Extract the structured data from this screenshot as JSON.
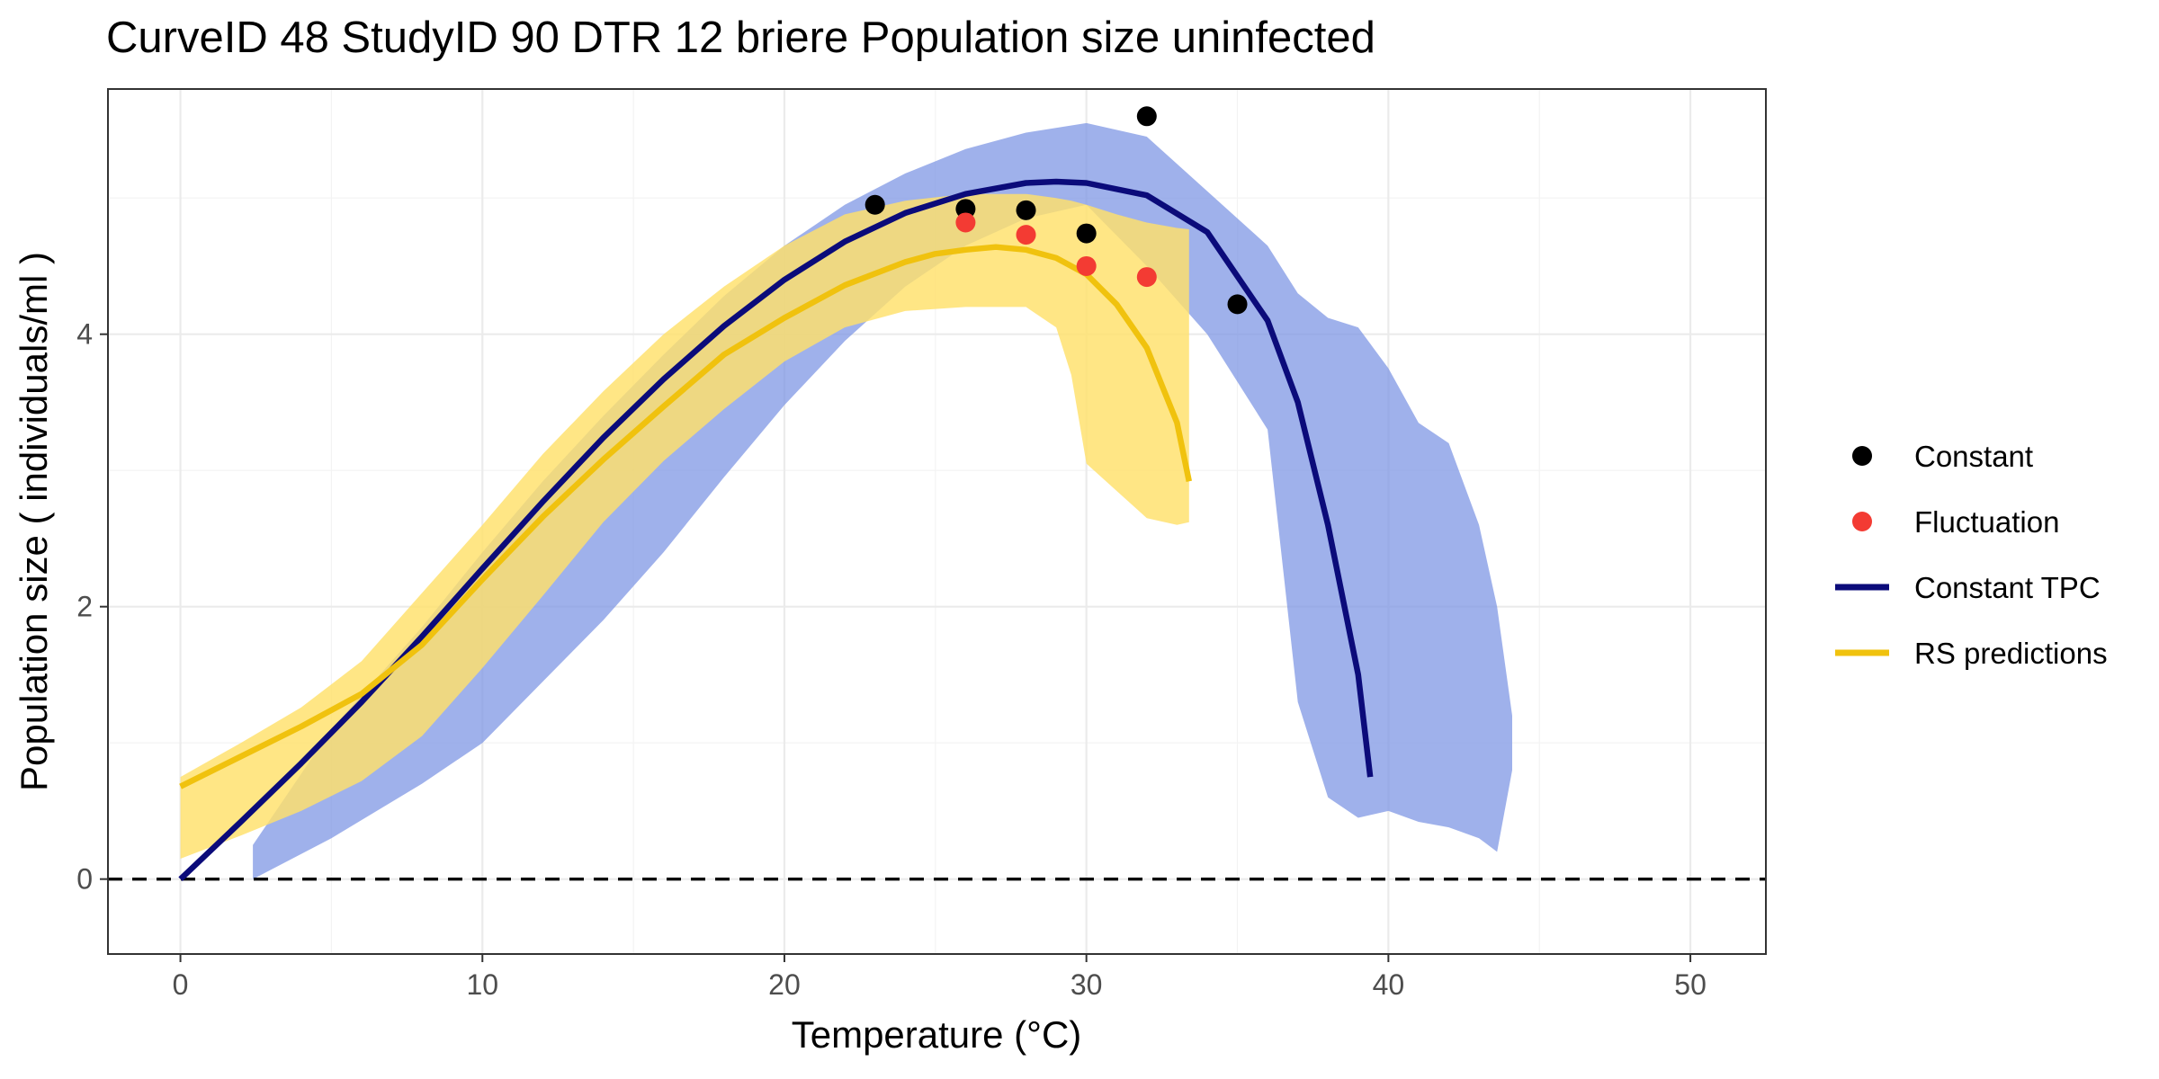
{
  "chart_data": {
    "type": "line",
    "title": "CurveID 48 StudyID 90 DTR 12 briere Population size uninfected",
    "xlabel": "Temperature (°C)",
    "ylabel": "Population size ( individuals/ml )",
    "xlim": [
      -2.4,
      52.5
    ],
    "ylim": [
      -0.55,
      5.8
    ],
    "xticks": [
      0,
      10,
      20,
      30,
      40,
      50
    ],
    "xtick_labels": [
      "0",
      "10",
      "20",
      "30",
      "40",
      "50"
    ],
    "yticks": [
      0,
      2,
      4
    ],
    "ytick_labels": [
      "0",
      "2",
      "4"
    ],
    "grid": true,
    "reference_line": {
      "y": 0,
      "style": "dashed",
      "color": "#000000"
    },
    "legend": {
      "position": "right",
      "entries": [
        {
          "label": "Constant",
          "kind": "point",
          "color": "#000000"
        },
        {
          "label": "Fluctuation",
          "kind": "point",
          "color": "#f33b33"
        },
        {
          "label": "Constant TPC",
          "kind": "line",
          "color": "#0b0b7a"
        },
        {
          "label": "RS predictions",
          "kind": "line",
          "color": "#f0c20e"
        }
      ]
    },
    "points": [
      {
        "series": "Constant",
        "color": "#000000",
        "x": [
          23,
          26,
          28,
          30,
          32,
          35
        ],
        "y": [
          4.95,
          4.92,
          4.91,
          4.74,
          5.6,
          4.22
        ]
      },
      {
        "series": "Fluctuation",
        "color": "#f33b33",
        "x": [
          26,
          28,
          30,
          32
        ],
        "y": [
          4.82,
          4.73,
          4.5,
          4.42
        ]
      }
    ],
    "lines": [
      {
        "series": "Constant TPC",
        "color": "#0b0b7a",
        "x": [
          0,
          2,
          4,
          6,
          8,
          10,
          12,
          14,
          16,
          18,
          20,
          22,
          24,
          26,
          28,
          29,
          30,
          32,
          34,
          36,
          37,
          38,
          39,
          39.4
        ],
        "y": [
          0,
          0.42,
          0.85,
          1.3,
          1.78,
          2.28,
          2.77,
          3.24,
          3.67,
          4.06,
          4.4,
          4.68,
          4.89,
          5.03,
          5.11,
          5.12,
          5.11,
          5.02,
          4.75,
          4.1,
          3.5,
          2.6,
          1.5,
          0.75
        ]
      },
      {
        "series": "RS predictions",
        "color": "#f0c20e",
        "x": [
          0,
          2,
          4,
          6,
          8,
          10,
          12,
          14,
          16,
          18,
          20,
          22,
          24,
          25,
          26,
          27,
          28,
          29,
          30,
          31,
          32,
          33,
          33.4
        ],
        "y": [
          0.68,
          0.9,
          1.12,
          1.36,
          1.72,
          2.2,
          2.66,
          3.08,
          3.47,
          3.85,
          4.12,
          4.36,
          4.53,
          4.59,
          4.62,
          4.64,
          4.62,
          4.56,
          4.44,
          4.22,
          3.9,
          3.35,
          2.92
        ]
      }
    ],
    "bands": [
      {
        "series": "Constant TPC",
        "color": "#7a93e3",
        "opacity": 0.72,
        "x": [
          2.4,
          5,
          8,
          10,
          12,
          14,
          16,
          18,
          20,
          22,
          24,
          26,
          28,
          30,
          32,
          34,
          36,
          37,
          38,
          39,
          40,
          41,
          42,
          43,
          43.6,
          44.1
        ],
        "lower": [
          0.0,
          0.3,
          0.7,
          1.0,
          1.45,
          1.9,
          2.4,
          2.95,
          3.48,
          3.95,
          4.35,
          4.65,
          4.85,
          4.95,
          4.5,
          4.0,
          3.3,
          1.3,
          0.6,
          0.45,
          0.5,
          0.42,
          0.38,
          0.3,
          0.2,
          0.8
        ],
        "upper": [
          0.25,
          1.1,
          1.85,
          2.4,
          2.92,
          3.4,
          3.85,
          4.28,
          4.65,
          4.95,
          5.18,
          5.36,
          5.48,
          5.55,
          5.45,
          5.05,
          4.65,
          4.3,
          4.12,
          4.05,
          3.75,
          3.35,
          3.2,
          2.6,
          2.0,
          1.2
        ]
      },
      {
        "series": "RS predictions",
        "color": "#ffe06a",
        "opacity": 0.82,
        "x": [
          0,
          2,
          4,
          6,
          8,
          10,
          12,
          14,
          16,
          18,
          20,
          22,
          24,
          26,
          28,
          29,
          29.5,
          30,
          31,
          32,
          33,
          33.4
        ],
        "lower": [
          0.15,
          0.32,
          0.5,
          0.72,
          1.05,
          1.55,
          2.08,
          2.62,
          3.07,
          3.45,
          3.8,
          4.05,
          4.17,
          4.2,
          4.2,
          4.05,
          3.7,
          3.05,
          2.85,
          2.65,
          2.6,
          2.62
        ],
        "upper": [
          0.75,
          1.0,
          1.26,
          1.6,
          2.1,
          2.6,
          3.12,
          3.58,
          4.0,
          4.35,
          4.65,
          4.88,
          4.98,
          5.03,
          5.03,
          5.0,
          4.98,
          4.95,
          4.88,
          4.82,
          4.78,
          4.77
        ]
      }
    ]
  }
}
